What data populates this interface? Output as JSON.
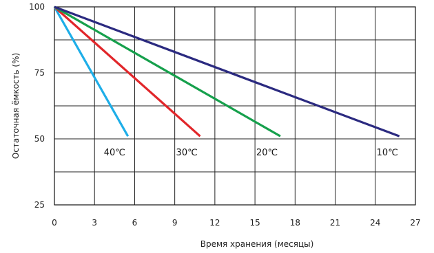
{
  "chart_data": {
    "type": "line",
    "xlabel": "Время хранения (месяцы)",
    "ylabel": "Остаточная ёмкость (%)",
    "xlim": [
      0,
      27
    ],
    "ylim": [
      25,
      100
    ],
    "x_ticks": [
      "0",
      "3",
      "6",
      "9",
      "12",
      "15",
      "18",
      "21",
      "24",
      "27"
    ],
    "y_ticks": [
      "25",
      "50",
      "75",
      "100"
    ],
    "grid": true,
    "series": [
      {
        "name": "40℃",
        "color": "#1eaee8",
        "x": [
          0,
          5.5
        ],
        "y": [
          100,
          51
        ]
      },
      {
        "name": "30℃",
        "color": "#e1262a",
        "x": [
          0,
          10.9
        ],
        "y": [
          100,
          51
        ]
      },
      {
        "name": "20℃",
        "color": "#16a04c",
        "x": [
          0,
          16.9
        ],
        "y": [
          100,
          51
        ]
      },
      {
        "name": "10℃",
        "color": "#2b2a80",
        "x": [
          0,
          25.8
        ],
        "y": [
          100,
          51
        ]
      }
    ],
    "labels": [
      {
        "text": "40℃",
        "x": 4.5,
        "y": 45
      },
      {
        "text": "30℃",
        "x": 9.9,
        "y": 45
      },
      {
        "text": "20℃",
        "x": 15.9,
        "y": 45
      },
      {
        "text": "10℃",
        "x": 24.9,
        "y": 45
      }
    ]
  }
}
